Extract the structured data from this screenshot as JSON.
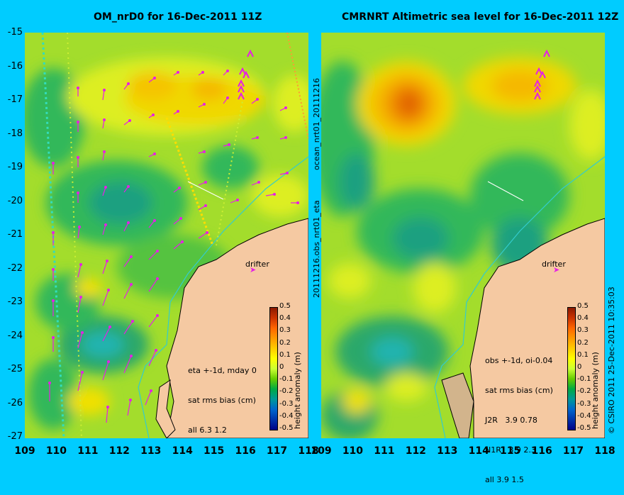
{
  "left_panel": {
    "title": "OM_nrD0 for 16-Dec-2011 11Z",
    "stats": [
      "eta +-1d, mday 0",
      "sat rms bias (cm)",
      "all 6.3 1.2"
    ],
    "drifter_label": "drifter"
  },
  "right_panel": {
    "title": "CMRNRT Altimetric sea level  for 16-Dec-2011 12Z",
    "stats": [
      "obs +-1d, oi-0.04",
      "sat rms bias (cm)",
      "J2R   3.9 0.78",
      "N1R   3.9 2.3",
      "all 3.9 1.5"
    ],
    "drifter_label": "drifter"
  },
  "middle_vertical_text": "20111216.obs_nrt01_eta",
  "middle_vertical_text_top": "ocean_nrt01_20111216",
  "copyright": "© CSIRO 2011   25-Dec-2011 10:35:03",
  "colorbar": {
    "label": "height anomaly (m)",
    "ticks": [
      "0.5",
      "0.4",
      "0.3",
      "0.2",
      "0.1",
      "0",
      "-0.1",
      "-0.2",
      "-0.3",
      "-0.4",
      "-0.5"
    ],
    "colors": [
      "#8b1a00",
      "#cc3300",
      "#ff6600",
      "#ff9900",
      "#ffcc00",
      "#ffff00",
      "#ccff33",
      "#66cc00",
      "#00aa44",
      "#009999",
      "#0066cc",
      "#0033aa",
      "#000088"
    ]
  },
  "y_ticks": [
    "-15",
    "-16",
    "-17",
    "-18",
    "-19",
    "-20",
    "-21",
    "-22",
    "-23",
    "-24",
    "-25",
    "-26",
    "-27"
  ],
  "x_ticks": [
    "109",
    "110",
    "111",
    "112",
    "113",
    "114",
    "115",
    "116",
    "117",
    "118"
  ],
  "colors": {
    "background": "#00ccff",
    "land": "#f5c9a2",
    "ocean_base": "#9edc2e",
    "arrow": "#e61fe6"
  }
}
